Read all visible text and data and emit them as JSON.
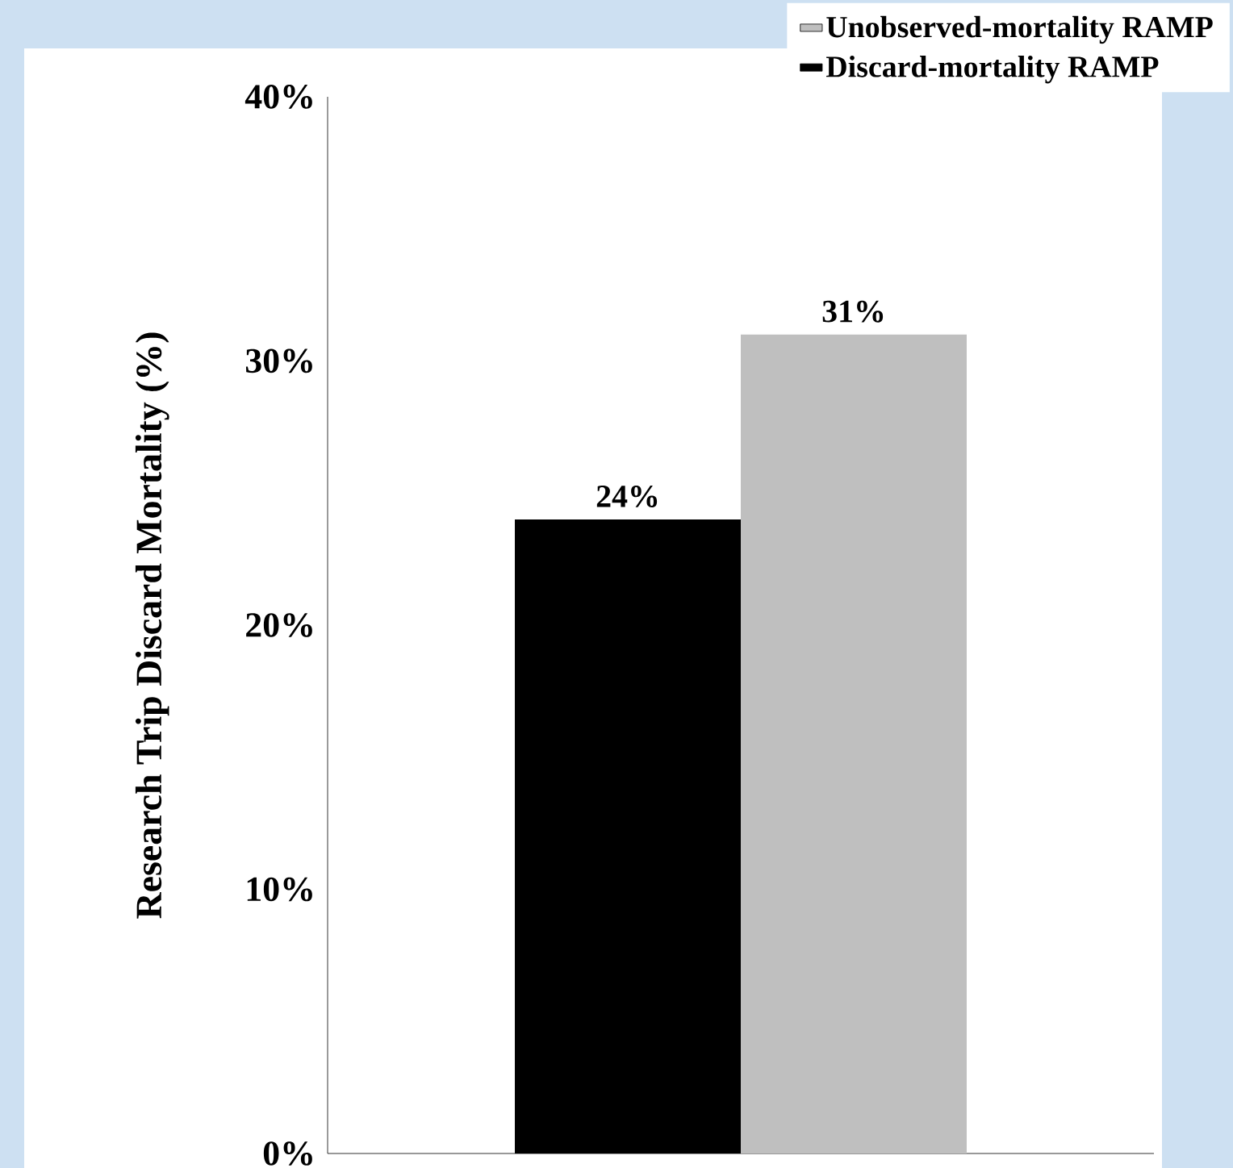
{
  "chart_data": {
    "type": "bar",
    "ylabel": "Research Trip Discard Mortality (%)",
    "categories": [
      null
    ],
    "series": [
      {
        "name": "Discard-mortality RAMP",
        "color": "#000000",
        "values": [
          24
        ],
        "value_labels": [
          "24%"
        ]
      },
      {
        "name": "Unobserved-mortality RAMP",
        "color": "#bfbfbf",
        "values": [
          31
        ],
        "value_labels": [
          "31%"
        ]
      }
    ],
    "ylim": [
      0,
      40
    ],
    "yticks": [
      {
        "value": 0,
        "label": "0%"
      },
      {
        "value": 10,
        "label": "10%"
      },
      {
        "value": 20,
        "label": "20%"
      },
      {
        "value": 30,
        "label": "30%"
      },
      {
        "value": 40,
        "label": "40%"
      }
    ],
    "legend": "top right",
    "grid": false
  }
}
